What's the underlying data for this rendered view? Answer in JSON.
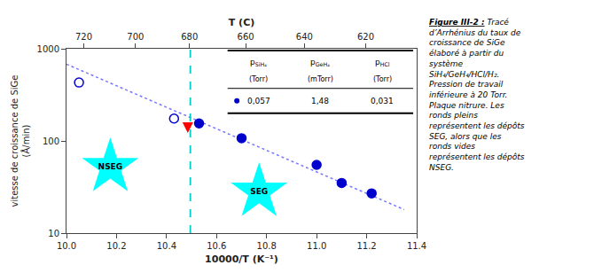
{
  "chart_data": {
    "type": "scatter",
    "log": "y",
    "grid": false,
    "xlabel": "10000/T (K⁻¹)",
    "ylabel": "vitesse de croissance de SiGe\n(Å/min)",
    "xlim": [
      10.0,
      11.4
    ],
    "xticks": [
      {
        "value": 10.0,
        "label": "10.0"
      },
      10.2,
      10.4,
      10.6,
      10.8,
      {
        "value": 11.0,
        "label": "11.0"
      },
      11.2,
      11.4
    ],
    "ylim": [
      10,
      1000
    ],
    "yticks": [
      10,
      100,
      1000
    ],
    "x2label": "T (C)",
    "x2lim": [
      10.0,
      11.4
    ],
    "x2ticks": [
      {
        "value": 10.06897,
        "label": "720"
      },
      {
        "value": 10.27591,
        "label": "700"
      },
      {
        "value": 10.49163,
        "label": "680"
      },
      {
        "value": 10.71639,
        "label": "660"
      },
      {
        "value": 10.9511,
        "label": "640"
      },
      {
        "value": 11.19633,
        "label": "620"
      }
    ],
    "series": [
      {
        "type": "line",
        "x": [
          10.0,
          11.35
        ],
        "values": [
          680,
          18
        ],
        "color": "#7777ff",
        "line_style": "dot"
      },
      {
        "type": "scatter",
        "x": [
          10.05,
          10.43
        ],
        "values": [
          430,
          175
        ],
        "color": "#0000cc",
        "marker": "circle-open"
      },
      {
        "type": "scatter",
        "x": [
          10.53,
          10.7,
          11.0,
          11.1,
          11.22
        ],
        "values": [
          155,
          107,
          55,
          35,
          27
        ],
        "color": "#0000cc",
        "marker": "circle"
      }
    ],
    "vlines": [
      {
        "x": 10.495,
        "color": "#00cccc",
        "line_style": "dash"
      }
    ],
    "arrows": [
      {
        "x": 10.485,
        "y_from": 160,
        "y_to": 122,
        "color": "red"
      }
    ],
    "labels": [
      {
        "text": "NSEG",
        "x": 10.175,
        "y": 52,
        "color": "cyan",
        "marker": "star"
      },
      {
        "text": "SEG",
        "x": 10.77,
        "y": 28,
        "color": "cyan",
        "marker": "star"
      }
    ],
    "table": {
      "color": "#0000cc",
      "columns": [
        {
          "symbol": "p",
          "subscript": "SiH₄",
          "unit": "(Torr)",
          "value": "0,057"
        },
        {
          "symbol": "p",
          "subscript": "GeH₄",
          "unit": "(mTorr)",
          "value": "1,48"
        },
        {
          "symbol": "p",
          "subscript": "HCl",
          "unit": "(Torr)",
          "value": "0,031"
        }
      ]
    },
    "caption": {
      "bold": "Figure III-2 :",
      "lines": [
        " Tracé",
        "d’Arrhénius du taux de",
        "croissance de SiGe",
        "élaboré à partir du",
        "système",
        "SiH₄/GeH₄/HCl/H₂.",
        "Pression de travail",
        "inférieure à 20 Torr.",
        "Plaque nitrure. Les",
        "ronds pleins",
        "représentent les dépôts",
        "SEG, alors que les",
        "ronds vides",
        "représentent les dépôts",
        "NSEG."
      ]
    }
  }
}
